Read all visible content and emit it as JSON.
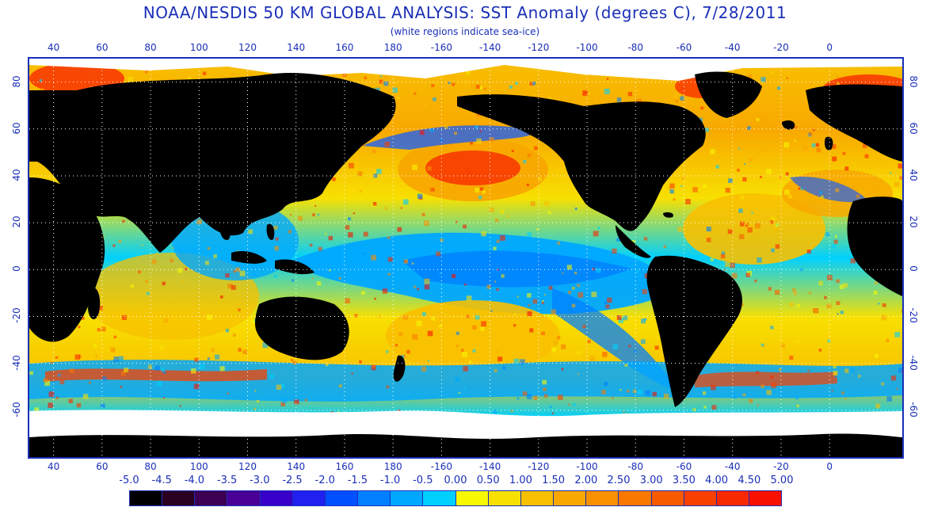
{
  "title": "NOAA/NESDIS 50 KM GLOBAL ANALYSIS: SST Anomaly (degrees C), 7/28/2011",
  "subtitle": "(white regions indicate sea-ice)",
  "longitude_ticks": [
    "40",
    "60",
    "80",
    "100",
    "120",
    "140",
    "160",
    "180",
    "-160",
    "-140",
    "-120",
    "-100",
    "-80",
    "-60",
    "-40",
    "-20",
    "0"
  ],
  "latitude_ticks": [
    "80",
    "60",
    "40",
    "20",
    "0",
    "-20",
    "-40",
    "-60"
  ],
  "legend": {
    "labels": [
      "-5.0",
      "-4.5",
      "-4.0",
      "-3.5",
      "-3.0",
      "-2.5",
      "-2.0",
      "-1.5",
      "-1.0",
      "-0.5",
      "0.00",
      "0.50",
      "1.00",
      "1.50",
      "2.00",
      "2.50",
      "3.00",
      "3.50",
      "4.00",
      "4.50",
      "5.00"
    ],
    "colors": [
      "#000000",
      "#2a0020",
      "#3d0052",
      "#4a0096",
      "#3800c8",
      "#2020f0",
      "#0050ff",
      "#0080ff",
      "#00a8ff",
      "#00d0ff",
      "#f8f800",
      "#f8e000",
      "#f8c000",
      "#f8a800",
      "#f89000",
      "#f87800",
      "#f85a00",
      "#f84000",
      "#f82800",
      "#f81000"
    ]
  },
  "map_colors": {
    "ocean_base": "#3cc4f0",
    "land": "#000000",
    "sea_ice": "#ffffff",
    "grid": "#ffffff",
    "warm": "#f8c000",
    "hot": "#f84000",
    "cool": "#2060f0"
  }
}
